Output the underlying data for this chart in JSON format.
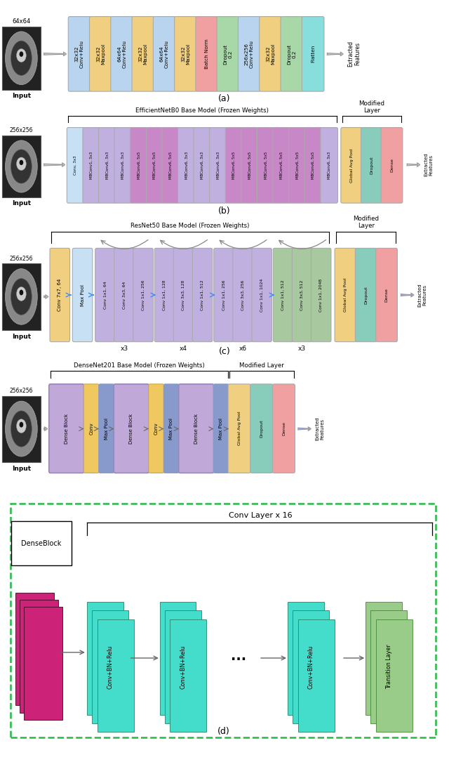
{
  "bg_color": "#ffffff",
  "fig_width": 6.4,
  "fig_height": 10.85,
  "diagram_a": {
    "title": "(a)",
    "img_label": "64x64",
    "layers": [
      {
        "text": "32x32\nConv+Relu",
        "color": "#b8d4ee"
      },
      {
        "text": "32x32\nMaxpool",
        "color": "#f0d080"
      },
      {
        "text": "64x64\nConv+Relu",
        "color": "#b8d4ee"
      },
      {
        "text": "32x32\nMaxpool",
        "color": "#f0d080"
      },
      {
        "text": "64x64\nConv+Relu",
        "color": "#b8d4ee"
      },
      {
        "text": "32x32\nMaxpool",
        "color": "#f0d080"
      },
      {
        "text": "Batch Norm",
        "color": "#f0a0a0"
      },
      {
        "text": "Dropout\n0.2",
        "color": "#a8d8a8"
      },
      {
        "text": "256x256\nConv+Relu",
        "color": "#b8d4ee"
      },
      {
        "text": "32x32\nMaxpool",
        "color": "#f0d080"
      },
      {
        "text": "Dropout\n0.2",
        "color": "#a8d8a8"
      },
      {
        "text": "Flatten",
        "color": "#88dddd"
      }
    ]
  },
  "diagram_b": {
    "title": "(b)",
    "model_label": "EfficientNetB0 Base Model (Frozen Weights)",
    "modified_label": "Modified\nLayer",
    "img_label": "256x256",
    "base_layers": [
      {
        "text": "Conv, 3x3",
        "color": "#c8e0f4"
      },
      {
        "text": "MBConv1, 3x3",
        "color": "#c0b0e0"
      },
      {
        "text": "MBConv6, 3x3",
        "color": "#c0b0e0"
      },
      {
        "text": "MBConv6, 3x3",
        "color": "#c0b0e0"
      },
      {
        "text": "MBConv6, 5x5",
        "color": "#c888c8"
      },
      {
        "text": "MBConv6, 5x5",
        "color": "#c888c8"
      },
      {
        "text": "MBConv6, 5x5",
        "color": "#c888c8"
      },
      {
        "text": "MBConv6, 3x3",
        "color": "#c0b0e0"
      },
      {
        "text": "MBConv6, 3x3",
        "color": "#c0b0e0"
      },
      {
        "text": "MBConv6, 3x3",
        "color": "#c0b0e0"
      },
      {
        "text": "MBConv6, 5x5",
        "color": "#c888c8"
      },
      {
        "text": "MBConv6, 5x5",
        "color": "#c888c8"
      },
      {
        "text": "MBConv6, 5x5",
        "color": "#c888c8"
      },
      {
        "text": "MBConv6, 5x5",
        "color": "#c888c8"
      },
      {
        "text": "MBConv6, 5x5",
        "color": "#c888c8"
      },
      {
        "text": "MBConv6, 5x5",
        "color": "#c888c8"
      },
      {
        "text": "MBConv6, 3x3",
        "color": "#c0b0e0"
      }
    ],
    "mod_layers": [
      {
        "text": "Global Avg Pool",
        "color": "#f0d080"
      },
      {
        "text": "Dropout",
        "color": "#88ccbb"
      },
      {
        "text": "Dense",
        "color": "#f0a0a0"
      }
    ]
  },
  "diagram_c": {
    "title": "(c)",
    "model_label": "ResNet50 Base Model (Frozen Weights)",
    "modified_label": "Modified\nLayer",
    "img_label": "256x256",
    "conv_layer": {
      "text": "Conv 7x7, 64",
      "color": "#f0d080"
    },
    "pool_layer": {
      "text": "Max Pool",
      "color": "#c8e0f4"
    },
    "blocks": [
      {
        "layers": [
          "Conv 1x1, 64",
          "Conv 3x3, 64",
          "Conv 1x1, 256"
        ],
        "color": "#c0b0e0",
        "repeat": "x3"
      },
      {
        "layers": [
          "Conv 1x1, 128",
          "Conv 3x3, 128",
          "Conv 1x1, 512"
        ],
        "color": "#c0b0e0",
        "repeat": "x4"
      },
      {
        "layers": [
          "Conv 1x1, 256",
          "Conv 3x3, 256",
          "Conv 1x1, 1024"
        ],
        "color": "#c0b0e0",
        "repeat": "x6"
      },
      {
        "layers": [
          "Conv 1x1, 512",
          "Conv 3x3, 512",
          "Conv 1x1, 2048"
        ],
        "color": "#a8c8a0",
        "repeat": "x3"
      }
    ],
    "mod_layers": [
      {
        "text": "Global Avg Pool",
        "color": "#f0d080"
      },
      {
        "text": "Dropout",
        "color": "#88ccbb"
      },
      {
        "text": "Dense",
        "color": "#f0a0a0"
      }
    ]
  },
  "diagram_d": {
    "title": "(d)",
    "model_label": "DenseNet201 Base Model (Frozen Weights)",
    "modified_label": "Modified Layer",
    "img_label": "256x256",
    "dense_block_color": "#c0a8d8",
    "conv_color": "#f0c860",
    "pool_color": "#8899cc",
    "mod_layers": [
      {
        "text": "Global Avg Pool",
        "color": "#f0d080"
      },
      {
        "text": "Dropout",
        "color": "#88ccbb"
      },
      {
        "text": "Dense",
        "color": "#f0a0a0"
      }
    ]
  }
}
